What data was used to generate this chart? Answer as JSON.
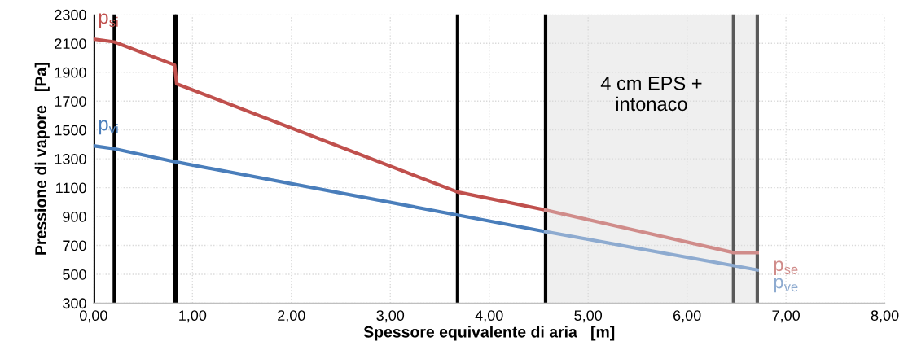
{
  "chart_data": {
    "type": "line",
    "xlabel": "Spessore equivalente di aria   [m]",
    "ylabel": "Pressione di vapore   [Pa]",
    "xlim": [
      0,
      8
    ],
    "ylim": [
      300,
      2300
    ],
    "xticks": [
      {
        "value": 0,
        "label": "0,00"
      },
      {
        "value": 1,
        "label": "1,00"
      },
      {
        "value": 2,
        "label": "2,00"
      },
      {
        "value": 3,
        "label": "3,00"
      },
      {
        "value": 4,
        "label": "4,00"
      },
      {
        "value": 5,
        "label": "5,00"
      },
      {
        "value": 6,
        "label": "6,00"
      },
      {
        "value": 7,
        "label": "7,00"
      },
      {
        "value": 8,
        "label": "8,00"
      }
    ],
    "yticks": [
      300,
      500,
      700,
      900,
      1100,
      1300,
      1500,
      1700,
      1900,
      2100,
      2300
    ],
    "grid": true,
    "line_style": "solid",
    "series": [
      {
        "name": "p$_{si}$",
        "color": "#c0504d",
        "x": [
          0,
          0.21,
          0.82,
          0.84,
          3.68,
          4.57
        ],
        "values": [
          2130,
          2110,
          1950,
          1820,
          1070,
          945
        ]
      },
      {
        "name": "p$_{se}$",
        "color": "#d08c8a",
        "x": [
          4.57,
          6.47,
          6.71
        ],
        "values": [
          945,
          650,
          650
        ]
      },
      {
        "name": "p$_{vi}$",
        "color": "#4a7ebb",
        "x": [
          0,
          0.21,
          0.82,
          3.68,
          4.57
        ],
        "values": [
          1390,
          1370,
          1280,
          910,
          795
        ]
      },
      {
        "name": "p$_{ve}$",
        "color": "#8eabd0",
        "x": [
          4.57,
          6.71
        ],
        "values": [
          795,
          530
        ]
      }
    ],
    "bands": [
      {
        "axis": "x",
        "from": 4.57,
        "to": 6.71,
        "label": "4 cm EPS +\nintonaco",
        "color": "#efefef"
      }
    ],
    "ref_lines": [
      {
        "axis": "x",
        "value": 0,
        "color": "#000000"
      },
      {
        "axis": "x",
        "value": 0.21,
        "color": "#000000"
      },
      {
        "axis": "x",
        "value": 0.82,
        "color": "#000000"
      },
      {
        "axis": "x",
        "value": 0.84,
        "color": "#000000"
      },
      {
        "axis": "x",
        "value": 3.68,
        "color": "#000000"
      },
      {
        "axis": "x",
        "value": 4.57,
        "color": "#000000"
      },
      {
        "axis": "x",
        "value": 6.47,
        "color": "#595959"
      },
      {
        "axis": "x",
        "value": 6.71,
        "color": "#595959"
      }
    ]
  }
}
